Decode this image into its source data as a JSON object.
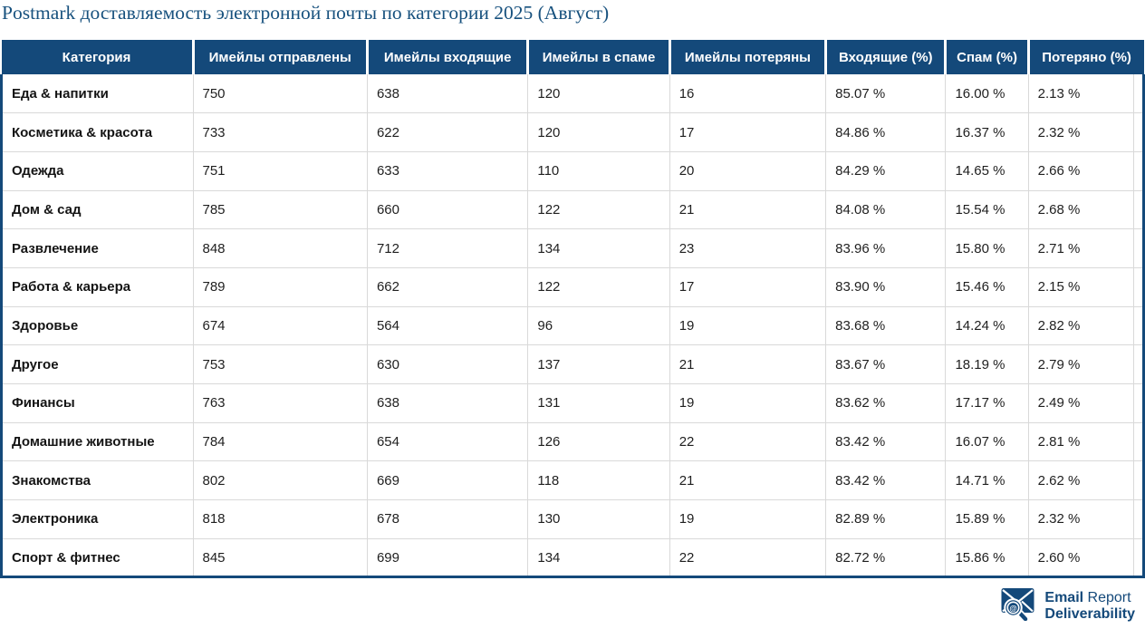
{
  "page": {
    "title": "Postmark доставляемость электронной почты по категории 2025 (Август)"
  },
  "chart_data": {
    "type": "table",
    "title": "Postmark доставляемость электронной почты по категории 2025 (Август)",
    "columns": [
      "Категория",
      "Имейлы отправлены",
      "Имейлы входящие",
      "Имейлы в спаме",
      "Имейлы потеряны",
      "Входящие (%)",
      "Спам (%)",
      "Потеряно (%)"
    ],
    "rows": [
      [
        "Еда & напитки",
        "750",
        "638",
        "120",
        "16",
        "85.07 %",
        "16.00 %",
        "2.13 %"
      ],
      [
        "Косметика & красота",
        "733",
        "622",
        "120",
        "17",
        "84.86 %",
        "16.37 %",
        "2.32 %"
      ],
      [
        "Одежда",
        "751",
        "633",
        "110",
        "20",
        "84.29 %",
        "14.65 %",
        "2.66 %"
      ],
      [
        "Дом & сад",
        "785",
        "660",
        "122",
        "21",
        "84.08 %",
        "15.54 %",
        "2.68 %"
      ],
      [
        "Развлечение",
        "848",
        "712",
        "134",
        "23",
        "83.96 %",
        "15.80 %",
        "2.71 %"
      ],
      [
        "Работа & карьера",
        "789",
        "662",
        "122",
        "17",
        "83.90 %",
        "15.46 %",
        "2.15 %"
      ],
      [
        "Здоровье",
        "674",
        "564",
        "96",
        "19",
        "83.68 %",
        "14.24 %",
        "2.82 %"
      ],
      [
        "Другое",
        "753",
        "630",
        "137",
        "21",
        "83.67 %",
        "18.19 %",
        "2.79 %"
      ],
      [
        "Финансы",
        "763",
        "638",
        "131",
        "19",
        "83.62 %",
        "17.17 %",
        "2.49 %"
      ],
      [
        "Домашние животные",
        "784",
        "654",
        "126",
        "22",
        "83.42 %",
        "16.07 %",
        "2.81 %"
      ],
      [
        "Знакомства",
        "802",
        "669",
        "118",
        "21",
        "83.42 %",
        "14.71 %",
        "2.62 %"
      ],
      [
        "Электроника",
        "818",
        "678",
        "130",
        "19",
        "82.89 %",
        "15.89 %",
        "2.32 %"
      ],
      [
        "Спорт & фитнес",
        "845",
        "699",
        "134",
        "22",
        "82.72 %",
        "15.86 %",
        "2.60 %"
      ]
    ]
  },
  "footer": {
    "brand_line1_bold": "Email",
    "brand_line1_regular": "Report",
    "brand_line2": "Deliverability",
    "icon": "email-magnifier-logo"
  },
  "colors": {
    "primary_blue": "#14497a",
    "title_blue": "#17517e",
    "grid_line": "#d9d9d9",
    "body_text": "#1f1f1f"
  }
}
